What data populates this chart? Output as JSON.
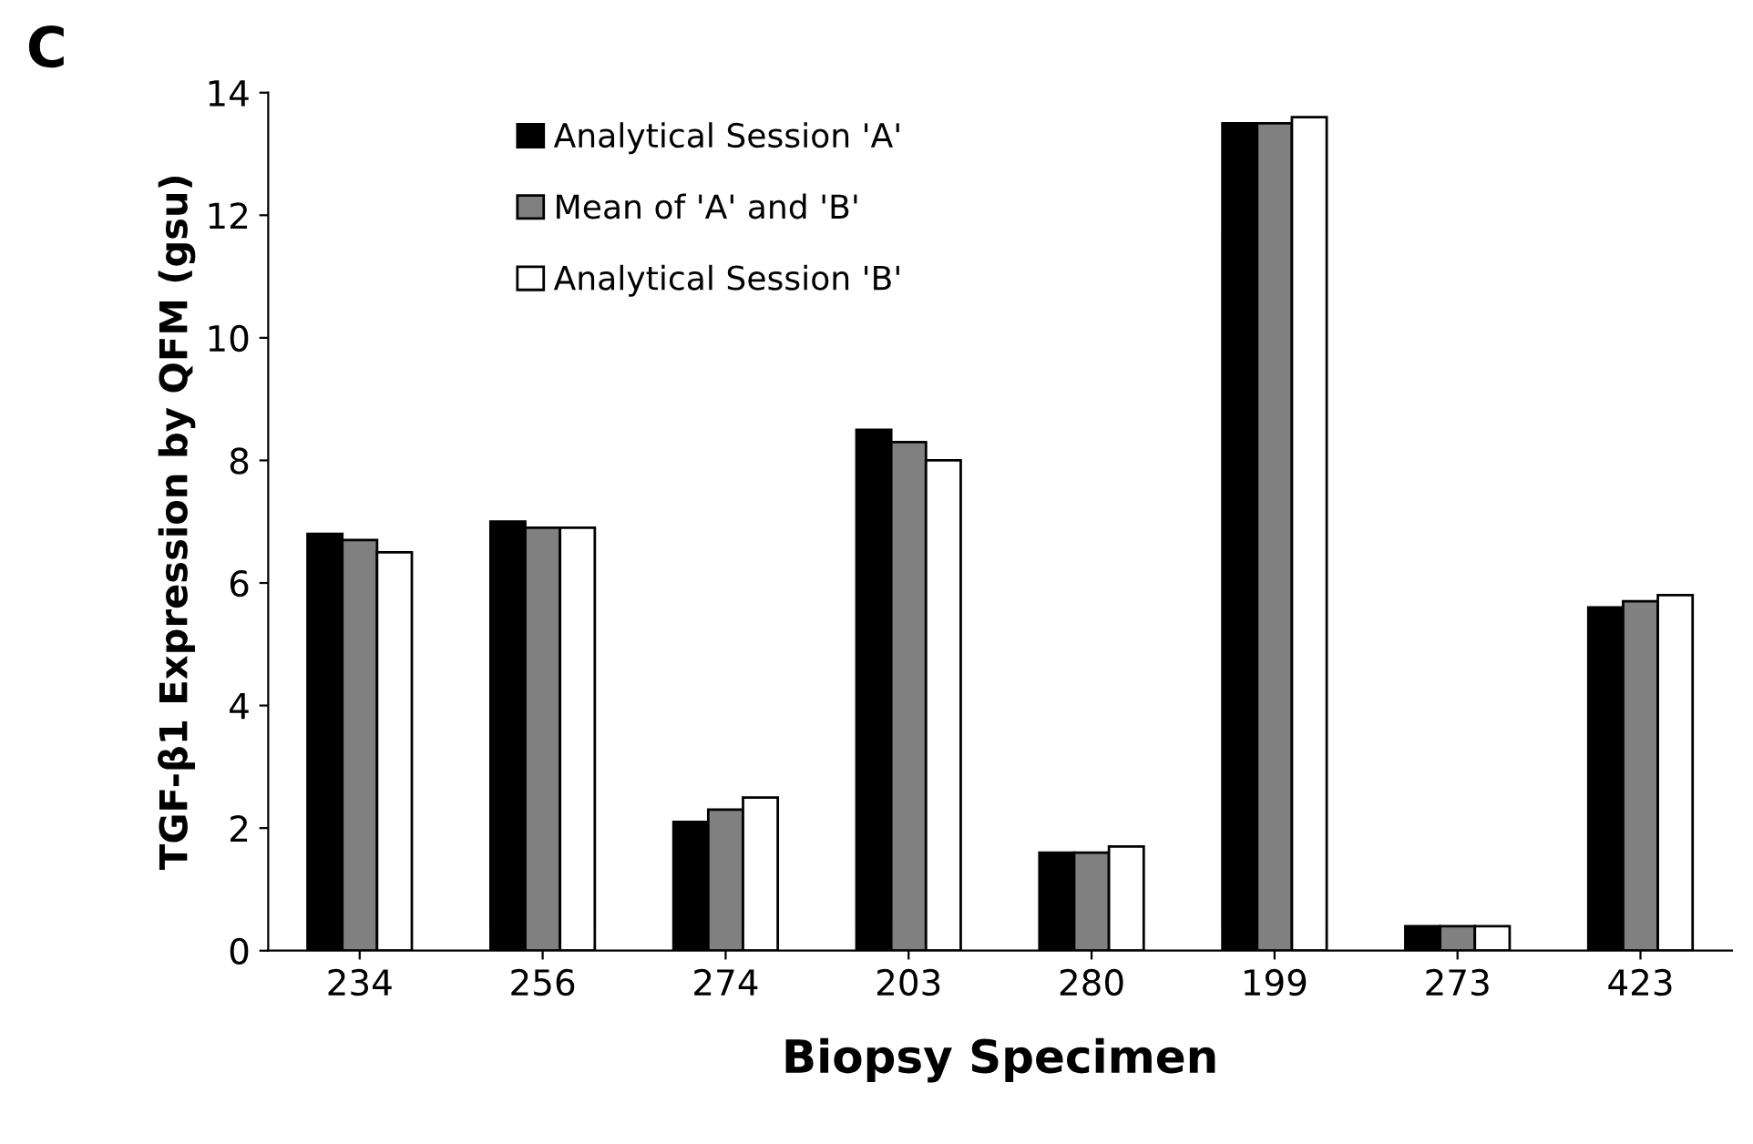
{
  "chart_data": {
    "type": "bar",
    "xlabel": "Biopsy Specimen",
    "ylabel": "TGF-β1 Expression by QFM (gsu)",
    "annotations": [
      "C"
    ],
    "categories": [
      "234",
      "256",
      "274",
      "203",
      "280",
      "199",
      "273",
      "423"
    ],
    "series": [
      {
        "name": "Analytical Session 'A'",
        "color": "#000000",
        "values": [
          6.8,
          7.0,
          2.1,
          8.5,
          1.6,
          13.5,
          0.4,
          5.6
        ]
      },
      {
        "name": "Mean of 'A' and 'B'",
        "color": "#808080",
        "values": [
          6.7,
          6.9,
          2.3,
          8.3,
          1.6,
          13.5,
          0.4,
          5.7
        ]
      },
      {
        "name": "Analytical Session 'B'",
        "color": "#ffffff",
        "values": [
          6.5,
          6.9,
          2.5,
          8.0,
          1.7,
          13.6,
          0.4,
          5.8
        ]
      }
    ],
    "ylim": [
      0,
      14
    ],
    "yticks": [
      0,
      2,
      4,
      6,
      8,
      10,
      12,
      14
    ],
    "grid": false,
    "legend": "top left"
  }
}
